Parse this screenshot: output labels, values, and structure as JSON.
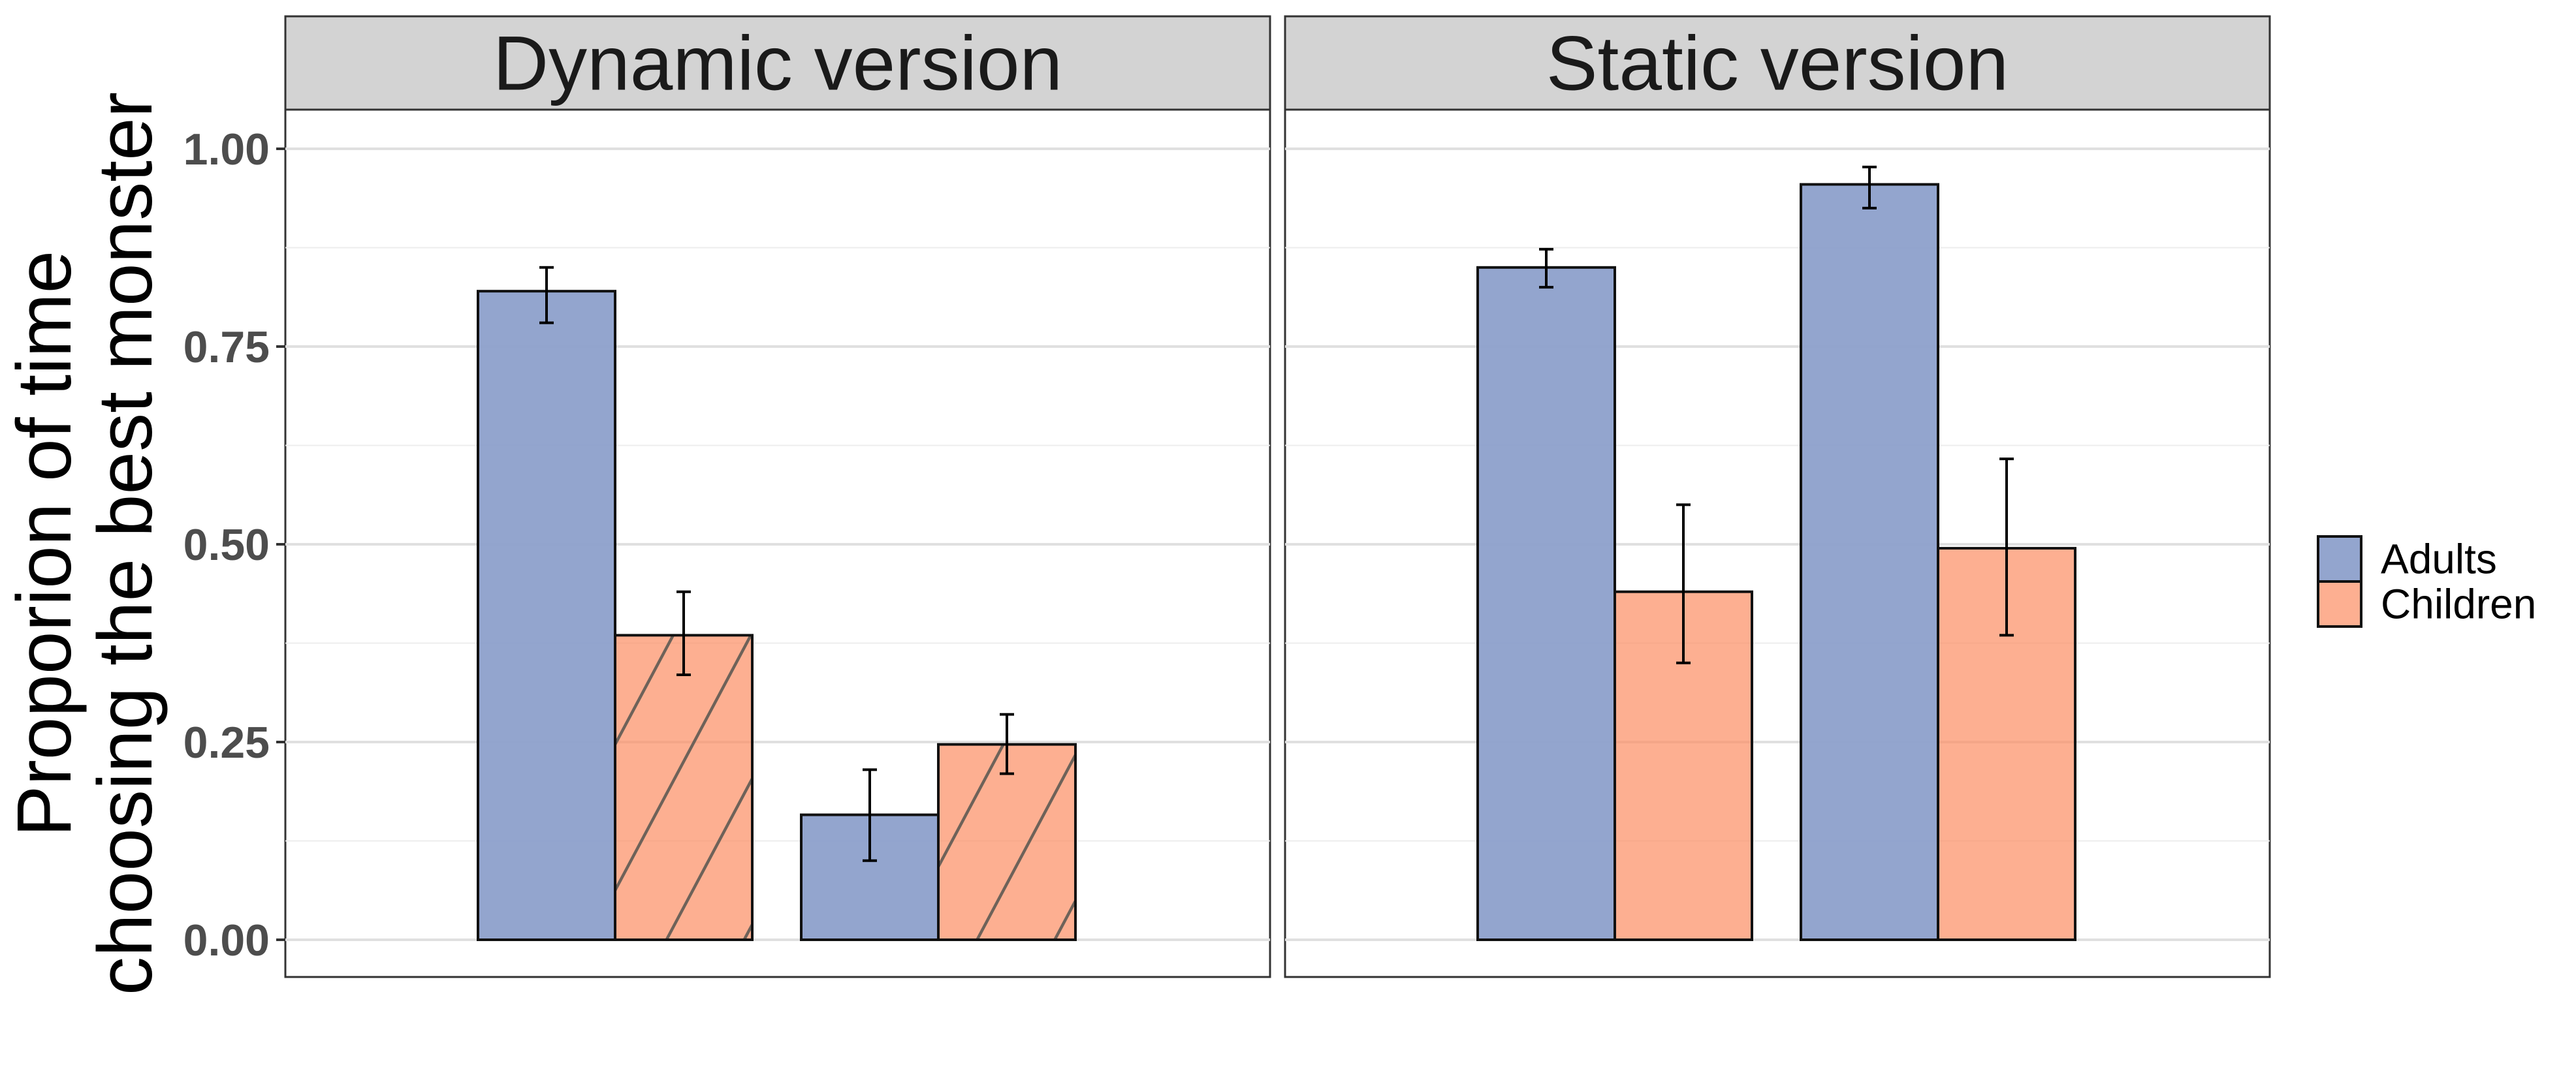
{
  "chart_data": {
    "type": "bar",
    "ylabel": [
      "Proporion of time",
      "choosing the best monster"
    ],
    "ylim": [
      0,
      1.05
    ],
    "yticks": [
      {
        "value": 0.0,
        "label": "0.00"
      },
      {
        "value": 0.25,
        "label": "0.25"
      },
      {
        "value": 0.5,
        "label": "0.50"
      },
      {
        "value": 0.75,
        "label": "0.75"
      },
      {
        "value": 1.0,
        "label": "1.00"
      }
    ],
    "grid": true,
    "legend": {
      "position": "right",
      "entries": [
        {
          "name": "Adults",
          "color": "#8da0cb"
        },
        {
          "name": "Children",
          "color": "#fc8d62"
        }
      ]
    },
    "panels": [
      {
        "title": "Dynamic version",
        "groups": [
          {
            "bars": [
              {
                "series": "Adults",
                "value": 0.82,
                "err_low": 0.78,
                "err_high": 0.85,
                "hatched": false
              },
              {
                "series": "Children",
                "value": 0.385,
                "err_low": 0.335,
                "err_high": 0.44,
                "hatched": true
              }
            ]
          },
          {
            "bars": [
              {
                "series": "Adults",
                "value": 0.158,
                "err_low": 0.1,
                "err_high": 0.215,
                "hatched": false
              },
              {
                "series": "Children",
                "value": 0.247,
                "err_low": 0.21,
                "err_high": 0.285,
                "hatched": true
              }
            ]
          }
        ]
      },
      {
        "title": "Static version",
        "groups": [
          {
            "bars": [
              {
                "series": "Adults",
                "value": 0.85,
                "err_low": 0.825,
                "err_high": 0.873,
                "hatched": false
              },
              {
                "series": "Children",
                "value": 0.44,
                "err_low": 0.35,
                "err_high": 0.55,
                "hatched": false
              }
            ]
          },
          {
            "bars": [
              {
                "series": "Adults",
                "value": 0.955,
                "err_low": 0.925,
                "err_high": 0.977,
                "hatched": false
              },
              {
                "series": "Children",
                "value": 0.495,
                "err_low": 0.385,
                "err_high": 0.608,
                "hatched": false
              }
            ]
          }
        ]
      }
    ]
  }
}
